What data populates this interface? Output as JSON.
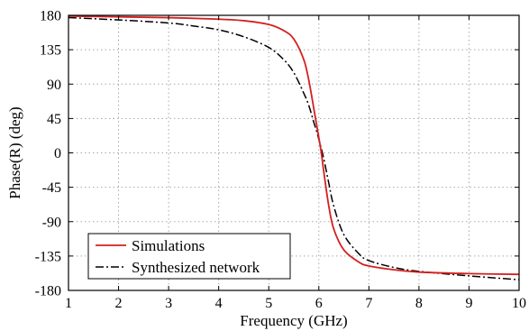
{
  "chart_data": {
    "type": "line",
    "title": "",
    "xlabel": "Frequency (GHz)",
    "ylabel": "Phase(R) (deg)",
    "xlim": [
      1,
      10
    ],
    "ylim": [
      -180,
      180
    ],
    "xticks": [
      1,
      2,
      3,
      4,
      5,
      6,
      7,
      8,
      9,
      10
    ],
    "yticks": [
      180,
      135,
      90,
      45,
      0,
      -45,
      -90,
      -135,
      -180
    ],
    "xtick_labels": [
      "1",
      "2",
      "3",
      "4",
      "5",
      "6",
      "7",
      "8",
      "9",
      "10"
    ],
    "ytick_labels": [
      "180",
      "135",
      "90",
      "45",
      "0",
      "-45",
      "-90",
      "-135",
      "-180"
    ],
    "grid": true,
    "legend_position": "bottom-left",
    "series": [
      {
        "name": "Simulations",
        "color": "#d42020",
        "style": "solid",
        "x": [
          1,
          2,
          3,
          4,
          4.5,
          5,
          5.3,
          5.5,
          5.7,
          5.8,
          5.9,
          6.0,
          6.05,
          6.1,
          6.2,
          6.3,
          6.5,
          6.8,
          7.0,
          7.5,
          8,
          9,
          10
        ],
        "y": [
          179,
          178,
          177,
          175,
          173,
          168,
          160,
          149,
          122,
          95,
          58,
          20,
          0,
          -25,
          -70,
          -100,
          -127,
          -143,
          -148,
          -153,
          -156,
          -158,
          -159
        ]
      },
      {
        "name": "Synthesized network",
        "color": "#000000",
        "style": "dashdot",
        "x": [
          1,
          2,
          3,
          3.5,
          4,
          4.5,
          5,
          5.3,
          5.5,
          5.7,
          5.8,
          5.9,
          6.0,
          6.1,
          6.2,
          6.3,
          6.5,
          6.8,
          7.0,
          7.5,
          8,
          9,
          10
        ],
        "y": [
          177,
          174,
          170,
          166,
          161,
          152,
          138,
          122,
          105,
          78,
          62,
          40,
          18,
          -8,
          -40,
          -70,
          -107,
          -132,
          -141,
          -150,
          -155,
          -161,
          -166
        ]
      }
    ]
  }
}
